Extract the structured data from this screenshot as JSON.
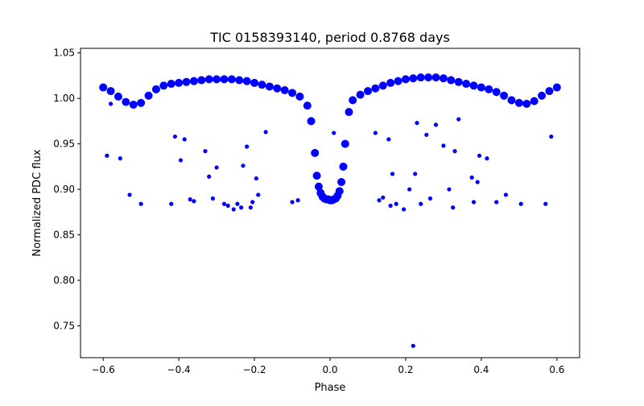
{
  "chart_data": {
    "type": "scatter",
    "title": "TIC 0158393140, period 0.8768 days",
    "xlabel": "Phase",
    "ylabel": "Normalized PDC flux",
    "xlim": [
      -0.66,
      0.66
    ],
    "ylim": [
      0.715,
      1.055
    ],
    "xticks": [
      -0.6,
      -0.4,
      -0.2,
      0.0,
      0.2,
      0.4,
      0.6
    ],
    "xtick_labels": [
      "−0.6",
      "−0.4",
      "−0.2",
      "0.0",
      "0.2",
      "0.4",
      "0.6"
    ],
    "yticks": [
      0.75,
      0.8,
      0.85,
      0.9,
      0.95,
      1.0,
      1.05
    ],
    "ytick_labels": [
      "0.75",
      "0.80",
      "0.85",
      "0.90",
      "0.95",
      "1.00",
      "1.05"
    ],
    "grid": false,
    "legend": "none",
    "marker_color": "#0000ff",
    "series": [
      {
        "x": [
          -0.6,
          -0.58,
          -0.56,
          -0.54,
          -0.52,
          -0.5,
          -0.48,
          -0.46,
          -0.44,
          -0.42,
          -0.4,
          -0.38,
          -0.36,
          -0.34,
          -0.32,
          -0.3,
          -0.28,
          -0.26,
          -0.24,
          -0.22,
          -0.2,
          -0.18,
          -0.16,
          -0.14,
          -0.12,
          -0.1,
          -0.08,
          -0.06,
          -0.05,
          -0.04,
          -0.035,
          -0.03,
          -0.025,
          -0.02,
          -0.015,
          -0.01,
          -0.005,
          0.0,
          0.005,
          0.01,
          0.015,
          0.02,
          0.025,
          0.03,
          0.035,
          0.04,
          0.05,
          0.06,
          0.08,
          0.1,
          0.12,
          0.14,
          0.16,
          0.18,
          0.2,
          0.22,
          0.24,
          0.26,
          0.28,
          0.3,
          0.32,
          0.34,
          0.36,
          0.38,
          0.4,
          0.42,
          0.44,
          0.46,
          0.48,
          0.5,
          0.52,
          0.54,
          0.56,
          0.58,
          0.6
        ],
        "y": [
          1.012,
          1.008,
          1.002,
          0.996,
          0.993,
          0.995,
          1.003,
          1.01,
          1.014,
          1.016,
          1.017,
          1.018,
          1.019,
          1.02,
          1.021,
          1.021,
          1.021,
          1.021,
          1.02,
          1.019,
          1.017,
          1.015,
          1.013,
          1.011,
          1.009,
          1.006,
          1.002,
          0.992,
          0.975,
          0.94,
          0.915,
          0.903,
          0.896,
          0.892,
          0.89,
          0.889,
          0.889,
          0.888,
          0.888,
          0.889,
          0.89,
          0.893,
          0.898,
          0.908,
          0.925,
          0.95,
          0.985,
          0.998,
          1.004,
          1.008,
          1.011,
          1.014,
          1.017,
          1.019,
          1.021,
          1.022,
          1.023,
          1.023,
          1.023,
          1.022,
          1.02,
          1.018,
          1.016,
          1.014,
          1.012,
          1.01,
          1.007,
          1.003,
          0.998,
          0.995,
          0.994,
          0.997,
          1.003,
          1.008,
          1.012
        ]
      },
      {
        "x": [
          -0.59,
          -0.58,
          -0.555,
          -0.53,
          -0.5,
          -0.42,
          -0.41,
          -0.395,
          -0.385,
          -0.37,
          -0.36,
          -0.33,
          -0.32,
          -0.31,
          -0.3,
          -0.28,
          -0.27,
          -0.255,
          -0.245,
          -0.235,
          -0.23,
          -0.22,
          -0.21,
          -0.205,
          -0.195,
          -0.19,
          -0.17,
          -0.1,
          -0.085,
          0.01,
          0.12,
          0.13,
          0.14,
          0.155,
          0.16,
          0.165,
          0.175,
          0.195,
          0.21,
          0.225,
          0.23,
          0.24,
          0.255,
          0.265,
          0.28,
          0.3,
          0.315,
          0.325,
          0.33,
          0.34,
          0.375,
          0.38,
          0.39,
          0.395,
          0.415,
          0.44,
          0.465,
          0.505,
          0.57,
          0.585,
          0.22
        ],
        "y": [
          0.937,
          0.994,
          0.934,
          0.894,
          0.884,
          0.884,
          0.958,
          0.932,
          0.955,
          0.889,
          0.887,
          0.942,
          0.914,
          0.89,
          0.924,
          0.884,
          0.882,
          0.878,
          0.884,
          0.88,
          0.926,
          0.947,
          0.88,
          0.886,
          0.912,
          0.894,
          0.963,
          0.886,
          0.888,
          0.962,
          0.962,
          0.888,
          0.891,
          0.955,
          0.882,
          0.917,
          0.884,
          0.878,
          0.9,
          0.917,
          0.973,
          0.884,
          0.96,
          0.89,
          0.971,
          0.948,
          0.9,
          0.88,
          0.942,
          0.977,
          0.913,
          0.886,
          0.908,
          0.937,
          0.934,
          0.886,
          0.894,
          0.884,
          0.884,
          0.958,
          0.728
        ]
      }
    ]
  }
}
